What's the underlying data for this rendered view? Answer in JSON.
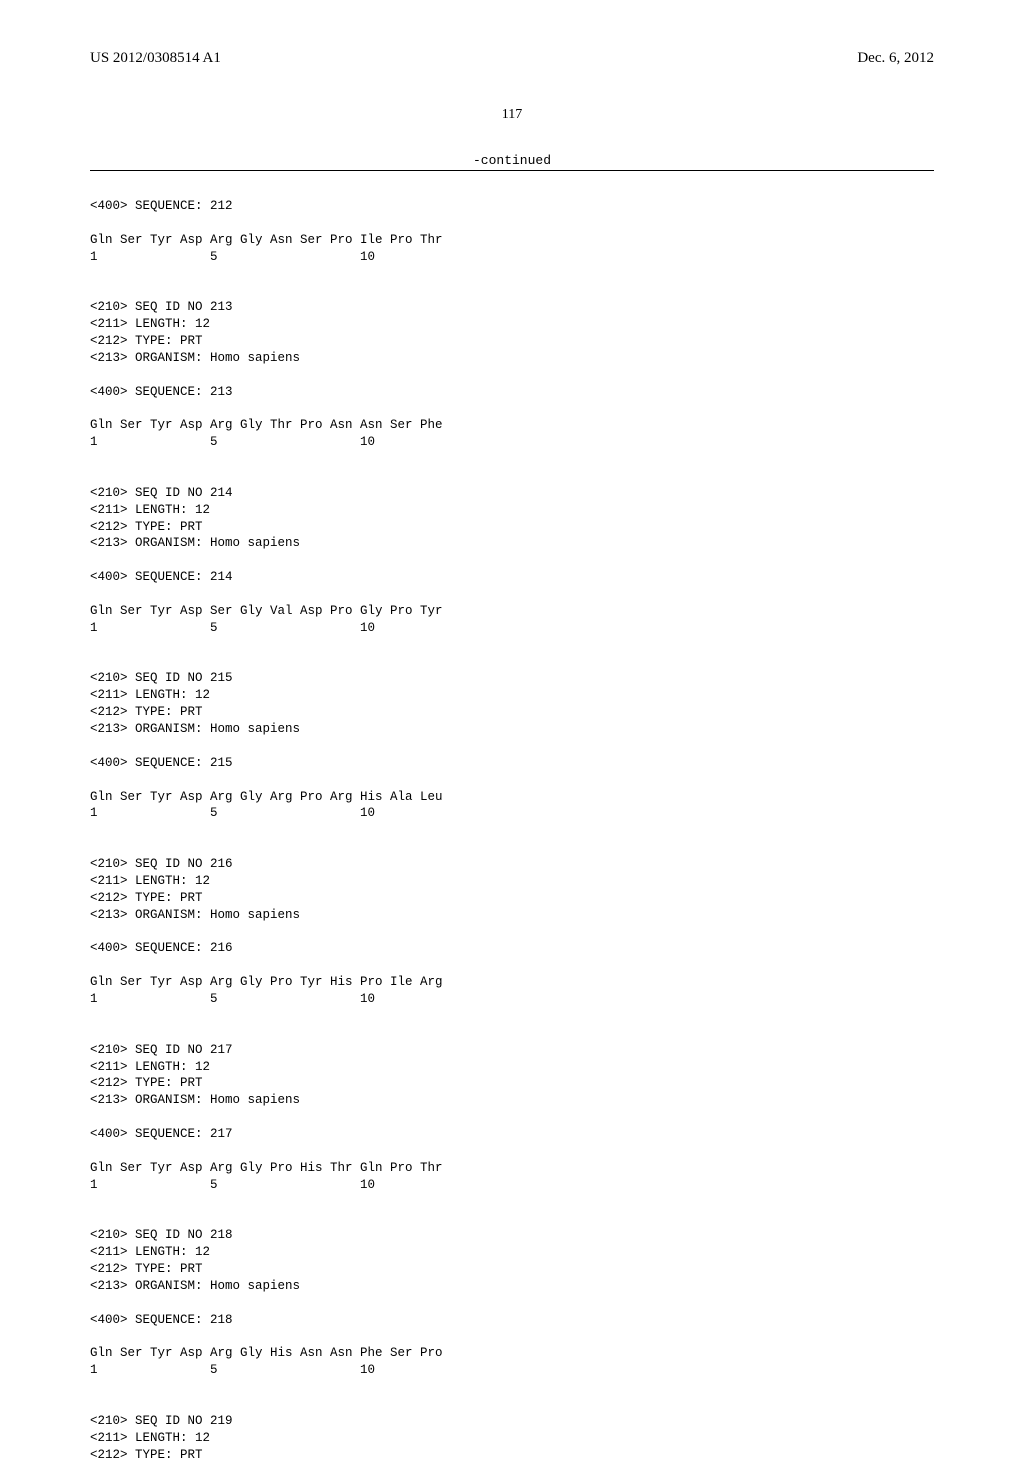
{
  "header": {
    "pub_number": "US 2012/0308514 A1",
    "pub_date": "Dec. 6, 2012"
  },
  "page_number": "117",
  "continued_label": "-continued",
  "sequences": [
    {
      "seq_line": "<400> SEQUENCE: 212",
      "residues": "Gln Ser Tyr Asp Arg Gly Asn Ser Pro Ile Pro Thr",
      "numbers": "1               5                   10"
    },
    {
      "meta": [
        "<210> SEQ ID NO 213",
        "<211> LENGTH: 12",
        "<212> TYPE: PRT",
        "<213> ORGANISM: Homo sapiens"
      ],
      "seq_line": "<400> SEQUENCE: 213",
      "residues": "Gln Ser Tyr Asp Arg Gly Thr Pro Asn Asn Ser Phe",
      "numbers": "1               5                   10"
    },
    {
      "meta": [
        "<210> SEQ ID NO 214",
        "<211> LENGTH: 12",
        "<212> TYPE: PRT",
        "<213> ORGANISM: Homo sapiens"
      ],
      "seq_line": "<400> SEQUENCE: 214",
      "residues": "Gln Ser Tyr Asp Ser Gly Val Asp Pro Gly Pro Tyr",
      "numbers": "1               5                   10"
    },
    {
      "meta": [
        "<210> SEQ ID NO 215",
        "<211> LENGTH: 12",
        "<212> TYPE: PRT",
        "<213> ORGANISM: Homo sapiens"
      ],
      "seq_line": "<400> SEQUENCE: 215",
      "residues": "Gln Ser Tyr Asp Arg Gly Arg Pro Arg His Ala Leu",
      "numbers": "1               5                   10"
    },
    {
      "meta": [
        "<210> SEQ ID NO 216",
        "<211> LENGTH: 12",
        "<212> TYPE: PRT",
        "<213> ORGANISM: Homo sapiens"
      ],
      "seq_line": "<400> SEQUENCE: 216",
      "residues": "Gln Ser Tyr Asp Arg Gly Pro Tyr His Pro Ile Arg",
      "numbers": "1               5                   10"
    },
    {
      "meta": [
        "<210> SEQ ID NO 217",
        "<211> LENGTH: 12",
        "<212> TYPE: PRT",
        "<213> ORGANISM: Homo sapiens"
      ],
      "seq_line": "<400> SEQUENCE: 217",
      "residues": "Gln Ser Tyr Asp Arg Gly Pro His Thr Gln Pro Thr",
      "numbers": "1               5                   10"
    },
    {
      "meta": [
        "<210> SEQ ID NO 218",
        "<211> LENGTH: 12",
        "<212> TYPE: PRT",
        "<213> ORGANISM: Homo sapiens"
      ],
      "seq_line": "<400> SEQUENCE: 218",
      "residues": "Gln Ser Tyr Asp Arg Gly His Asn Asn Phe Ser Pro",
      "numbers": "1               5                   10"
    },
    {
      "meta": [
        "<210> SEQ ID NO 219",
        "<211> LENGTH: 12",
        "<212> TYPE: PRT"
      ]
    }
  ]
}
